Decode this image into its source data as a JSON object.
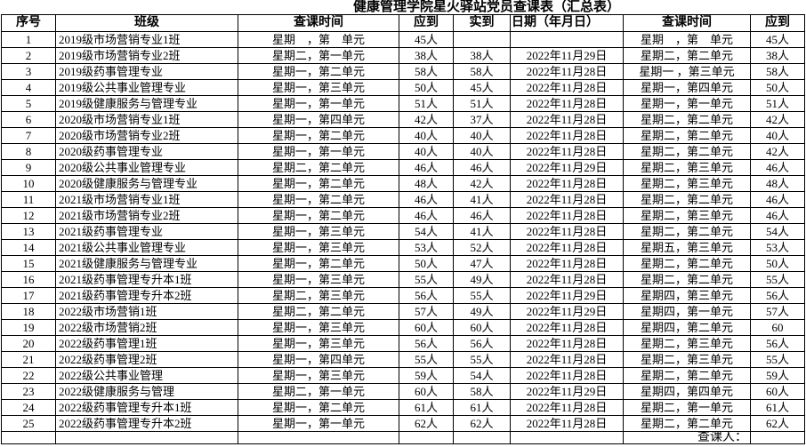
{
  "title": "健康管理学院星火驿站党员查课表（汇总表）",
  "table": {
    "headers": [
      "序号",
      "班级",
      "查课时间",
      "应到",
      "实到",
      "日期（年月日）",
      "查课时间",
      "应到"
    ],
    "rows": [
      [
        "1",
        "2019级市场营销专业1班",
        "星期　，第　单元",
        "45人",
        "",
        "",
        "星期　，第　单元",
        "45人"
      ],
      [
        "2",
        "2019级市场营销专业2班",
        "星期二，第一单元",
        "38人",
        "38人",
        "2022年11月29日",
        "星期二，第二单元",
        "38人"
      ],
      [
        "3",
        "2019级药事管理专业",
        "星期一，第二单元",
        "58人",
        "58人",
        "2022年11月28日",
        "星期一 ，第三单元",
        "58人"
      ],
      [
        "4",
        "2019级公共事业管理专业",
        "星期一，第三单元",
        "50人",
        "45人",
        "2022年11月28日",
        "星期一，第四单元",
        "50人"
      ],
      [
        "5",
        "2019级健康服务与管理专业",
        "星期一，第一单元",
        "51人",
        "51人",
        "2022年11月28日",
        "星期一，第一单元",
        "51人"
      ],
      [
        "6",
        "2020级市场营销专业1班",
        "星期一，第四单元",
        "42人",
        "37人",
        "2022年11月28日",
        "星期二，第二单元",
        "42人"
      ],
      [
        "7",
        "2020级市场营销专业2班",
        "星期一，第二单元",
        "40人",
        "40人",
        "2022年11月28日",
        "星期二，第二单元",
        "40人"
      ],
      [
        "8",
        "2020级药事管理专业",
        "星期一，第一单元",
        "40人",
        "40人",
        "2022年11月28日",
        "星期二，第二单元",
        "42人"
      ],
      [
        "9",
        "2020级公共事业管理专业",
        "星期二，第二单元",
        "46人",
        "46人",
        "2022年11月29日",
        "星期二，第三单元",
        "46人"
      ],
      [
        "10",
        "2020级健康服务与管理专业",
        "星期一，第二单元",
        "48人",
        "42人",
        "2022年11月28日",
        "星期二，第三单元",
        "48人"
      ],
      [
        "11",
        "2021级市场营销专业1班",
        "星期一，第二单元",
        "46人",
        "41人",
        "2022年11月28日",
        "星期二，第二单元",
        "46人"
      ],
      [
        "12",
        "2021级市场营销专业2班",
        "星期一，第二单元",
        "46人",
        "46人",
        "2022年11月28日",
        "星期二，第三单元",
        "46人"
      ],
      [
        "13",
        "2021级药事管理专业",
        "星期一，第三单元",
        "54人",
        "41人",
        "2022年11月28日",
        "星期二，第二单元",
        "54人"
      ],
      [
        "14",
        "2021级公共事业管理专业",
        "星期一，第三单元",
        "53人",
        "52人",
        "2022年11月28日",
        "星期五，第三单元",
        "53人"
      ],
      [
        "15",
        "2021级健康服务与管理专业",
        "星期一，第二单元",
        "50人",
        "47人",
        "2022年11月28日",
        "星期二，第二单元",
        "50人"
      ],
      [
        "16",
        "2021级药事管理专升本1班",
        "星期一，第三单元",
        "55人",
        "49人",
        "2022年11月28日",
        "星期二，第二单元",
        "55人"
      ],
      [
        "17",
        "2021级药事管理专升本2班",
        "星期二，第三单元",
        "56人",
        "55人",
        "2022年11月29日",
        "星期四，第三单元",
        "56人"
      ],
      [
        "18",
        "2022级市场营销1班",
        "星期二，第二单元",
        "57人",
        "49人",
        "2022年11月29日",
        "星期四，第一单元",
        "57人"
      ],
      [
        "19",
        "2022级市场营销2班",
        "星期一，第三单元",
        "60人",
        "60人",
        "2022年11月28日",
        "星期四，第二单元",
        "60"
      ],
      [
        "20",
        "2022级药事管理1班",
        "星期一，第三单元",
        "56人",
        "56人",
        "2022年11月28日",
        "星期二，第三单元",
        "56人"
      ],
      [
        "21",
        "2022级药事管理2班",
        "星期一，第四单元",
        "55人",
        "55人",
        "2022年11月28日",
        "星期二，第三单元",
        "55人"
      ],
      [
        "22",
        "2022级公共事业管理",
        "星期一，第三单元",
        "59人",
        "54人",
        "2022年11月28日",
        "星期二，第二单元",
        "59人"
      ],
      [
        "23",
        "2022级健康服务与管理",
        "星期二，第一单元",
        "60人",
        "58人",
        "2022年11月29日",
        "星期四，第四单元",
        "60人"
      ],
      [
        "24",
        "2022级药事管理专升本1班",
        "星期一，第二单元",
        "61人",
        "61人",
        "2022年11月28日",
        "星期二，第一单元",
        "61人"
      ],
      [
        "25",
        "2022级药事管理专升本2班",
        "星期一，第一单元",
        "62人",
        "62人",
        "2022年11月28日",
        "星期二，第二单元",
        "62人"
      ]
    ],
    "footer_row": [
      "",
      "",
      "",
      "",
      "",
      "",
      "查课人：",
      ""
    ]
  }
}
